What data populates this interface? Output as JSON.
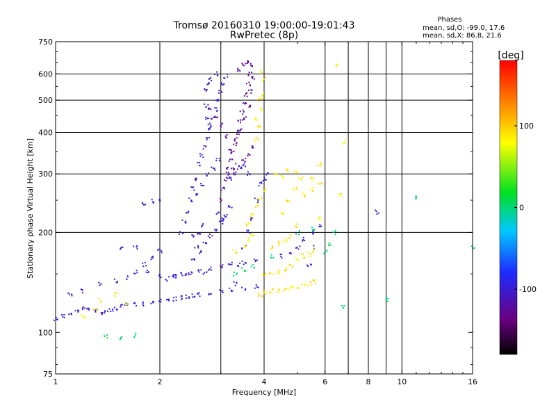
{
  "chart_data": {
    "type": "scatter",
    "title": "Tromsø 20160310 19:00:00-19:01:43",
    "subtitle": "RwPretec (8p)",
    "xlabel": "Frequency [MHz]",
    "ylabel": "Stationary phase Virtual Height [km]",
    "x_scale": "log",
    "y_scale": "log",
    "xlim": [
      1,
      16
    ],
    "ylim": [
      75,
      750
    ],
    "xticks": [
      1,
      2,
      4,
      6,
      8,
      10,
      16
    ],
    "xtick_labels": [
      "1",
      "2",
      "4",
      "6",
      "8",
      "10",
      "16"
    ],
    "yticks": [
      75,
      100,
      200,
      300,
      400,
      500,
      600,
      750
    ],
    "ytick_labels": [
      "75",
      "100",
      "200",
      "300",
      "400",
      "500",
      "600",
      "750"
    ],
    "x_gridlines": [
      2,
      3,
      4,
      6,
      7,
      8,
      9,
      10
    ],
    "y_gridlines": [
      200,
      300,
      400,
      500,
      600
    ],
    "grid": true,
    "stats": {
      "heading": "Phases",
      "line_o": "mean, sd,O: -99.0, 17.6",
      "line_x": "mean, sd,X:  86.8, 21.6"
    },
    "colorbar": {
      "label": "[deg]",
      "range": [
        -180,
        180
      ],
      "ticks": [
        100,
        0,
        -100
      ],
      "tick_labels": [
        "100",
        "0",
        "-100"
      ],
      "colormap": "rainbow (black-purple-blue-cyan-green-yellow-red)"
    },
    "series": [
      {
        "mode": "O",
        "mean_phase_deg": -99.0,
        "points": [
          [
            1.0,
            110
          ],
          [
            1.05,
            112
          ],
          [
            1.1,
            113
          ],
          [
            1.15,
            116
          ],
          [
            1.2,
            118
          ],
          [
            1.25,
            117
          ],
          [
            1.3,
            116
          ],
          [
            1.35,
            115
          ],
          [
            1.4,
            116
          ],
          [
            1.45,
            117
          ],
          [
            1.5,
            118
          ],
          [
            1.55,
            120
          ],
          [
            1.6,
            121
          ],
          [
            1.7,
            121
          ],
          [
            1.8,
            122
          ],
          [
            1.9,
            123
          ],
          [
            2.0,
            124
          ],
          [
            2.1,
            125
          ],
          [
            2.2,
            126
          ],
          [
            2.3,
            127
          ],
          [
            2.4,
            128
          ],
          [
            2.5,
            129
          ],
          [
            2.6,
            130
          ],
          [
            2.8,
            131
          ],
          [
            3.0,
            133
          ],
          [
            3.2,
            134
          ],
          [
            3.5,
            135
          ],
          [
            3.8,
            137
          ],
          [
            1.1,
            130
          ],
          [
            1.2,
            133
          ],
          [
            1.35,
            140
          ],
          [
            1.5,
            143
          ],
          [
            1.55,
            178
          ],
          [
            1.7,
            180
          ],
          [
            1.85,
            152
          ],
          [
            2.0,
            148
          ],
          [
            2.2,
            148
          ],
          [
            2.4,
            150
          ],
          [
            2.6,
            153
          ],
          [
            2.8,
            156
          ],
          [
            3.0,
            158
          ],
          [
            3.2,
            160
          ],
          [
            3.5,
            162
          ],
          [
            3.8,
            165
          ],
          [
            1.6,
            146
          ],
          [
            1.7,
            152
          ],
          [
            1.8,
            160
          ],
          [
            1.9,
            168
          ],
          [
            2.0,
            176
          ],
          [
            2.1,
            145
          ],
          [
            2.2,
            150
          ],
          [
            2.3,
            150
          ],
          [
            2.45,
            150
          ],
          [
            2.7,
            150
          ],
          [
            2.3,
            200
          ],
          [
            2.35,
            215
          ],
          [
            2.4,
            230
          ],
          [
            2.45,
            250
          ],
          [
            2.5,
            270
          ],
          [
            2.55,
            290
          ],
          [
            2.5,
            195
          ],
          [
            2.55,
            180
          ],
          [
            2.6,
            200
          ],
          [
            2.65,
            210
          ],
          [
            2.6,
            320
          ],
          [
            2.65,
            340
          ],
          [
            2.7,
            360
          ],
          [
            2.75,
            385
          ],
          [
            2.8,
            410
          ],
          [
            2.85,
            440
          ],
          [
            2.9,
            470
          ],
          [
            2.95,
            500
          ],
          [
            3.0,
            530
          ],
          [
            3.05,
            560
          ],
          [
            3.1,
            590
          ],
          [
            2.9,
            600
          ],
          [
            2.8,
            580
          ],
          [
            2.75,
            560
          ],
          [
            2.7,
            540
          ],
          [
            2.72,
            480
          ],
          [
            2.75,
            440
          ],
          [
            2.78,
            420
          ],
          [
            2.95,
            230
          ],
          [
            3.05,
            220
          ],
          [
            2.5,
            165
          ],
          [
            2.6,
            175
          ],
          [
            2.7,
            185
          ],
          [
            2.8,
            195
          ],
          [
            2.9,
            205
          ],
          [
            3.0,
            215
          ],
          [
            3.1,
            225
          ],
          [
            3.2,
            240
          ],
          [
            2.55,
            260
          ],
          [
            2.65,
            280
          ],
          [
            2.75,
            300
          ],
          [
            2.85,
            310
          ],
          [
            2.95,
            330
          ],
          [
            3.2,
            290
          ],
          [
            3.3,
            300
          ],
          [
            3.4,
            310
          ],
          [
            3.5,
            320
          ],
          [
            3.6,
            300
          ],
          [
            3.3,
            140
          ],
          [
            3.4,
            160
          ],
          [
            3.5,
            180
          ],
          [
            3.6,
            200
          ],
          [
            3.7,
            220
          ],
          [
            3.8,
            250
          ],
          [
            3.9,
            280
          ],
          [
            4.0,
            290
          ],
          [
            4.1,
            300
          ],
          [
            4.5,
            170
          ],
          [
            4.8,
            175
          ],
          [
            5.0,
            180
          ],
          [
            5.2,
            190
          ],
          [
            5.5,
            200
          ],
          [
            5.8,
            210
          ],
          [
            5.4,
            160
          ],
          [
            5.6,
            180
          ],
          [
            1.8,
            245
          ],
          [
            1.9,
            248
          ],
          [
            2.0,
            250
          ],
          [
            8.5,
            230
          ]
        ]
      },
      {
        "mode": "O-F-trace",
        "mean_phase_deg": -125.0,
        "points": [
          [
            3.0,
            250
          ],
          [
            3.05,
            270
          ],
          [
            3.1,
            290
          ],
          [
            3.15,
            310
          ],
          [
            3.2,
            330
          ],
          [
            3.25,
            350
          ],
          [
            3.3,
            370
          ],
          [
            3.35,
            400
          ],
          [
            3.4,
            430
          ],
          [
            3.45,
            460
          ],
          [
            3.5,
            490
          ],
          [
            3.55,
            520
          ],
          [
            3.6,
            560
          ],
          [
            3.65,
            600
          ],
          [
            3.7,
            640
          ],
          [
            3.2,
            350
          ],
          [
            3.3,
            380
          ],
          [
            3.4,
            410
          ],
          [
            3.5,
            440
          ],
          [
            3.6,
            480
          ],
          [
            3.65,
            530
          ],
          [
            3.7,
            580
          ],
          [
            3.4,
            620
          ],
          [
            3.5,
            640
          ],
          [
            3.6,
            650
          ],
          [
            2.8,
            470
          ],
          [
            2.9,
            450
          ],
          [
            3.0,
            420
          ],
          [
            3.1,
            390
          ],
          [
            3.15,
            300
          ],
          [
            3.25,
            310
          ],
          [
            3.35,
            320
          ],
          [
            3.5,
            330
          ],
          [
            3.6,
            340
          ],
          [
            3.7,
            360
          ]
        ]
      },
      {
        "mode": "X",
        "mean_phase_deg": 86.8,
        "points": [
          [
            1.2,
            112
          ],
          [
            1.3,
            117
          ],
          [
            1.35,
            125
          ],
          [
            1.5,
            130
          ],
          [
            1.6,
            122
          ],
          [
            3.3,
            175
          ],
          [
            3.5,
            182
          ],
          [
            3.6,
            190
          ],
          [
            3.7,
            195
          ],
          [
            3.6,
            210
          ],
          [
            3.7,
            225
          ],
          [
            3.8,
            240
          ],
          [
            3.9,
            255
          ],
          [
            4.0,
            270
          ],
          [
            4.0,
            148
          ],
          [
            4.2,
            150
          ],
          [
            4.4,
            152
          ],
          [
            4.6,
            155
          ],
          [
            4.8,
            160
          ],
          [
            5.0,
            165
          ],
          [
            5.2,
            170
          ],
          [
            5.4,
            172
          ],
          [
            5.6,
            176
          ],
          [
            3.9,
            130
          ],
          [
            4.0,
            132
          ],
          [
            4.2,
            133
          ],
          [
            4.4,
            134
          ],
          [
            4.6,
            135
          ],
          [
            4.8,
            136
          ],
          [
            5.0,
            137
          ],
          [
            5.2,
            138
          ],
          [
            5.4,
            140
          ],
          [
            5.6,
            142
          ],
          [
            4.2,
            180
          ],
          [
            4.4,
            185
          ],
          [
            4.6,
            190
          ],
          [
            4.8,
            195
          ],
          [
            5.0,
            210
          ],
          [
            4.5,
            230
          ],
          [
            4.7,
            250
          ],
          [
            4.9,
            270
          ],
          [
            5.1,
            290
          ],
          [
            5.5,
            290
          ],
          [
            5.8,
            280
          ],
          [
            3.8,
            380
          ],
          [
            3.85,
            420
          ],
          [
            3.9,
            470
          ],
          [
            3.95,
            520
          ],
          [
            4.0,
            580
          ],
          [
            3.8,
            440
          ],
          [
            3.9,
            500
          ],
          [
            3.9,
            610
          ],
          [
            4.3,
            300
          ],
          [
            4.5,
            295
          ],
          [
            4.7,
            310
          ],
          [
            4.9,
            305
          ],
          [
            5.2,
            260
          ],
          [
            5.5,
            270
          ],
          [
            5.8,
            220
          ],
          [
            6.5,
            640
          ],
          [
            6.6,
            260
          ],
          [
            5.8,
            320
          ],
          [
            6.8,
            375
          ]
        ]
      },
      {
        "mode": "mixed",
        "mean_phase_deg": 0.0,
        "points": [
          [
            1.4,
            97
          ],
          [
            1.55,
            96
          ],
          [
            1.7,
            98
          ],
          [
            3.3,
            150
          ],
          [
            3.5,
            155
          ],
          [
            3.7,
            158
          ],
          [
            4.2,
            170
          ],
          [
            5.0,
            200
          ],
          [
            5.5,
            205
          ],
          [
            6.0,
            175
          ],
          [
            6.2,
            185
          ],
          [
            6.4,
            200
          ],
          [
            16.0,
            180
          ],
          [
            11.0,
            255
          ],
          [
            9.0,
            125
          ],
          [
            6.8,
            120
          ]
        ]
      }
    ]
  }
}
